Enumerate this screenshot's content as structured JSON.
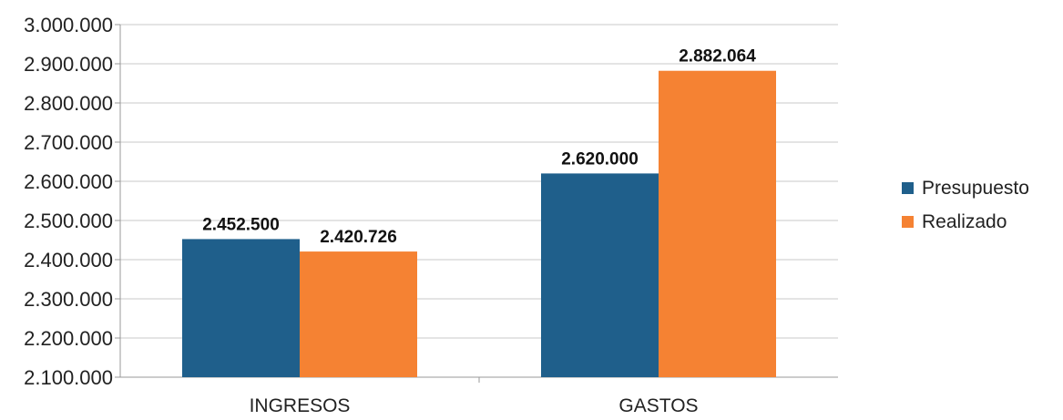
{
  "chart_data": {
    "type": "bar",
    "categories": [
      "INGRESOS",
      "GASTOS"
    ],
    "series": [
      {
        "name": "Presupuesto",
        "values": [
          2452500,
          2620000
        ],
        "labels": [
          "2.452.500",
          "2.620.000"
        ],
        "color": "#1f5f8b"
      },
      {
        "name": "Realizado",
        "values": [
          2420726,
          2882064
        ],
        "labels": [
          "2.420.726",
          "2.882.064"
        ],
        "color": "#f58233"
      }
    ],
    "title": "",
    "xlabel": "",
    "ylabel": "",
    "ylim": [
      2100000,
      3000000
    ],
    "yticks": [
      {
        "value": 2100000,
        "label": "2.100.000"
      },
      {
        "value": 2200000,
        "label": "2.200.000"
      },
      {
        "value": 2300000,
        "label": "2.300.000"
      },
      {
        "value": 2400000,
        "label": "2.400.000"
      },
      {
        "value": 2500000,
        "label": "2.500.000"
      },
      {
        "value": 2600000,
        "label": "2.600.000"
      },
      {
        "value": 2700000,
        "label": "2.700.000"
      },
      {
        "value": 2800000,
        "label": "2.800.000"
      },
      {
        "value": 2900000,
        "label": "2.900.000"
      },
      {
        "value": 3000000,
        "label": "3.000.000"
      }
    ],
    "grid": true,
    "gridline_color": "#c8c8c8",
    "legend_position": "right"
  }
}
